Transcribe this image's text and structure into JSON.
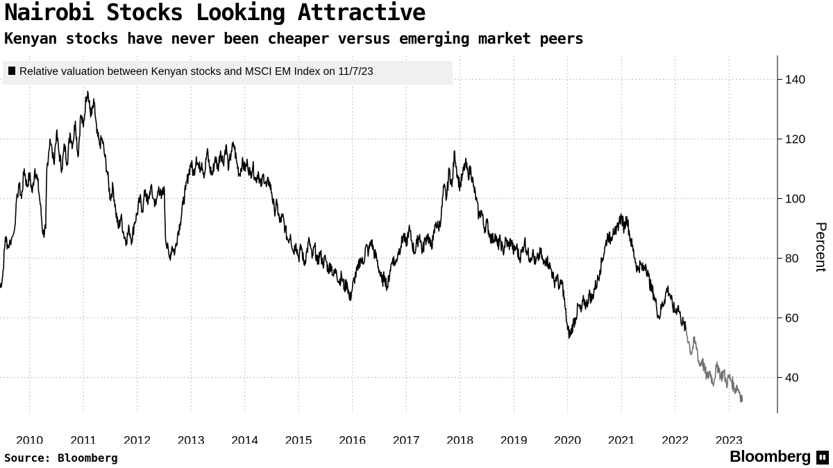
{
  "header": {
    "title": "Nairobi Stocks Looking Attractive",
    "subtitle": "Kenyan stocks have never been cheaper versus emerging market peers"
  },
  "footer": {
    "source": "Source: Bloomberg",
    "brand": "Bloomberg"
  },
  "colors": {
    "series": "#000000",
    "series_recent": "#707070",
    "grid": "#bdbdbd",
    "legend_bg": "#f0f0f0"
  },
  "chart_data": {
    "type": "line",
    "title": "Nairobi Stocks Looking Attractive",
    "subtitle": "Kenyan stocks have never been cheaper versus emerging market peers",
    "xlabel": "",
    "ylabel": "Percent",
    "ylim": [
      28,
      148
    ],
    "xlim": [
      2009.45,
      2023.9
    ],
    "yticks": [
      40,
      60,
      80,
      100,
      120,
      140
    ],
    "xticks": [
      2010,
      2011,
      2012,
      2013,
      2014,
      2015,
      2016,
      2017,
      2018,
      2019,
      2020,
      2021,
      2022,
      2023
    ],
    "grid": true,
    "legend_position": "top-left",
    "y_axis_side": "right",
    "series": [
      {
        "name": "Relative valuation between Kenyan stocks and MSCI EM Index on 11/7/23",
        "points": [
          [
            2009.45,
            70
          ],
          [
            2009.5,
            74
          ],
          [
            2009.55,
            87
          ],
          [
            2009.6,
            84
          ],
          [
            2009.7,
            88
          ],
          [
            2009.8,
            105
          ],
          [
            2009.85,
            100
          ],
          [
            2009.9,
            110
          ],
          [
            2009.95,
            104
          ],
          [
            2010.0,
            108
          ],
          [
            2010.05,
            102
          ],
          [
            2010.1,
            110
          ],
          [
            2010.15,
            106
          ],
          [
            2010.2,
            98
          ],
          [
            2010.25,
            88
          ],
          [
            2010.3,
            90
          ],
          [
            2010.32,
            110
          ],
          [
            2010.38,
            120
          ],
          [
            2010.45,
            112
          ],
          [
            2010.5,
            122
          ],
          [
            2010.55,
            115
          ],
          [
            2010.6,
            110
          ],
          [
            2010.65,
            118
          ],
          [
            2010.7,
            112
          ],
          [
            2010.75,
            122
          ],
          [
            2010.8,
            118
          ],
          [
            2010.85,
            126
          ],
          [
            2010.9,
            114
          ],
          [
            2010.95,
            128
          ],
          [
            2011.0,
            124
          ],
          [
            2011.05,
            134
          ],
          [
            2011.08,
            136
          ],
          [
            2011.12,
            130
          ],
          [
            2011.15,
            128
          ],
          [
            2011.2,
            132
          ],
          [
            2011.25,
            122
          ],
          [
            2011.3,
            118
          ],
          [
            2011.35,
            120
          ],
          [
            2011.4,
            114
          ],
          [
            2011.45,
            108
          ],
          [
            2011.5,
            100
          ],
          [
            2011.55,
            104
          ],
          [
            2011.6,
            96
          ],
          [
            2011.65,
            90
          ],
          [
            2011.7,
            94
          ],
          [
            2011.75,
            88
          ],
          [
            2011.8,
            86
          ],
          [
            2011.85,
            90
          ],
          [
            2011.9,
            86
          ],
          [
            2011.95,
            92
          ],
          [
            2012.0,
            95
          ],
          [
            2012.05,
            100
          ],
          [
            2012.1,
            96
          ],
          [
            2012.15,
            103
          ],
          [
            2012.2,
            98
          ],
          [
            2012.25,
            104
          ],
          [
            2012.3,
            100
          ],
          [
            2012.35,
            98
          ],
          [
            2012.4,
            104
          ],
          [
            2012.45,
            100
          ],
          [
            2012.5,
            104
          ],
          [
            2012.53,
            86
          ],
          [
            2012.6,
            80
          ],
          [
            2012.65,
            84
          ],
          [
            2012.7,
            82
          ],
          [
            2012.75,
            88
          ],
          [
            2012.8,
            92
          ],
          [
            2012.85,
            98
          ],
          [
            2012.9,
            103
          ],
          [
            2012.95,
            108
          ],
          [
            2013.0,
            112
          ],
          [
            2013.05,
            108
          ],
          [
            2013.1,
            114
          ],
          [
            2013.15,
            110
          ],
          [
            2013.2,
            112
          ],
          [
            2013.25,
            108
          ],
          [
            2013.3,
            116
          ],
          [
            2013.35,
            110
          ],
          [
            2013.4,
            108
          ],
          [
            2013.45,
            114
          ],
          [
            2013.5,
            110
          ],
          [
            2013.55,
            116
          ],
          [
            2013.6,
            112
          ],
          [
            2013.65,
            118
          ],
          [
            2013.7,
            110
          ],
          [
            2013.75,
            116
          ],
          [
            2013.8,
            118
          ],
          [
            2013.85,
            112
          ],
          [
            2013.9,
            108
          ],
          [
            2013.95,
            112
          ],
          [
            2014.0,
            110
          ],
          [
            2014.05,
            112
          ],
          [
            2014.1,
            108
          ],
          [
            2014.15,
            111
          ],
          [
            2014.2,
            106
          ],
          [
            2014.25,
            109
          ],
          [
            2014.3,
            104
          ],
          [
            2014.35,
            108
          ],
          [
            2014.4,
            104
          ],
          [
            2014.45,
            106
          ],
          [
            2014.5,
            102
          ],
          [
            2014.55,
            96
          ],
          [
            2014.6,
            98
          ],
          [
            2014.65,
            92
          ],
          [
            2014.7,
            94
          ],
          [
            2014.75,
            90
          ],
          [
            2014.8,
            86
          ],
          [
            2014.85,
            88
          ],
          [
            2014.9,
            82
          ],
          [
            2014.95,
            85
          ],
          [
            2015.0,
            80
          ],
          [
            2015.05,
            84
          ],
          [
            2015.1,
            78
          ],
          [
            2015.15,
            82
          ],
          [
            2015.2,
            86
          ],
          [
            2015.25,
            80
          ],
          [
            2015.3,
            84
          ],
          [
            2015.35,
            78
          ],
          [
            2015.4,
            82
          ],
          [
            2015.45,
            78
          ],
          [
            2015.5,
            80
          ],
          [
            2015.55,
            76
          ],
          [
            2015.6,
            78
          ],
          [
            2015.65,
            74
          ],
          [
            2015.7,
            76
          ],
          [
            2015.75,
            72
          ],
          [
            2015.8,
            74
          ],
          [
            2015.85,
            70
          ],
          [
            2015.9,
            72
          ],
          [
            2015.95,
            66
          ],
          [
            2016.0,
            70
          ],
          [
            2016.05,
            74
          ],
          [
            2016.1,
            76
          ],
          [
            2016.15,
            80
          ],
          [
            2016.2,
            78
          ],
          [
            2016.25,
            84
          ],
          [
            2016.3,
            82
          ],
          [
            2016.35,
            86
          ],
          [
            2016.4,
            82
          ],
          [
            2016.45,
            80
          ],
          [
            2016.5,
            76
          ],
          [
            2016.55,
            72
          ],
          [
            2016.6,
            74
          ],
          [
            2016.65,
            70
          ],
          [
            2016.7,
            76
          ],
          [
            2016.75,
            80
          ],
          [
            2016.8,
            78
          ],
          [
            2016.85,
            82
          ],
          [
            2016.9,
            84
          ],
          [
            2016.95,
            88
          ],
          [
            2017.0,
            84
          ],
          [
            2017.05,
            90
          ],
          [
            2017.1,
            86
          ],
          [
            2017.15,
            82
          ],
          [
            2017.2,
            85
          ],
          [
            2017.25,
            88
          ],
          [
            2017.3,
            82
          ],
          [
            2017.35,
            86
          ],
          [
            2017.4,
            88
          ],
          [
            2017.45,
            84
          ],
          [
            2017.5,
            86
          ],
          [
            2017.55,
            92
          ],
          [
            2017.6,
            90
          ],
          [
            2017.65,
            94
          ],
          [
            2017.7,
            104
          ],
          [
            2017.75,
            100
          ],
          [
            2017.8,
            110
          ],
          [
            2017.85,
            104
          ],
          [
            2017.9,
            116
          ],
          [
            2017.95,
            108
          ],
          [
            2018.0,
            104
          ],
          [
            2018.05,
            108
          ],
          [
            2018.1,
            112
          ],
          [
            2018.15,
            108
          ],
          [
            2018.2,
            110
          ],
          [
            2018.25,
            104
          ],
          [
            2018.3,
            100
          ],
          [
            2018.35,
            94
          ],
          [
            2018.4,
            96
          ],
          [
            2018.45,
            90
          ],
          [
            2018.5,
            92
          ],
          [
            2018.55,
            88
          ],
          [
            2018.6,
            86
          ],
          [
            2018.65,
            88
          ],
          [
            2018.7,
            84
          ],
          [
            2018.75,
            86
          ],
          [
            2018.8,
            82
          ],
          [
            2018.85,
            86
          ],
          [
            2018.9,
            84
          ],
          [
            2018.95,
            86
          ],
          [
            2019.0,
            82
          ],
          [
            2019.05,
            84
          ],
          [
            2019.1,
            80
          ],
          [
            2019.15,
            82
          ],
          [
            2019.2,
            86
          ],
          [
            2019.25,
            82
          ],
          [
            2019.3,
            80
          ],
          [
            2019.35,
            82
          ],
          [
            2019.4,
            78
          ],
          [
            2019.45,
            80
          ],
          [
            2019.5,
            82
          ],
          [
            2019.55,
            78
          ],
          [
            2019.6,
            80
          ],
          [
            2019.65,
            78
          ],
          [
            2019.7,
            76
          ],
          [
            2019.75,
            72
          ],
          [
            2019.8,
            74
          ],
          [
            2019.85,
            70
          ],
          [
            2019.9,
            72
          ],
          [
            2019.95,
            64
          ],
          [
            2020.0,
            56
          ],
          [
            2020.05,
            54
          ],
          [
            2020.1,
            58
          ],
          [
            2020.15,
            60
          ],
          [
            2020.2,
            64
          ],
          [
            2020.25,
            62
          ],
          [
            2020.3,
            66
          ],
          [
            2020.35,
            64
          ],
          [
            2020.4,
            68
          ],
          [
            2020.45,
            66
          ],
          [
            2020.5,
            70
          ],
          [
            2020.55,
            72
          ],
          [
            2020.6,
            76
          ],
          [
            2020.65,
            80
          ],
          [
            2020.7,
            84
          ],
          [
            2020.75,
            88
          ],
          [
            2020.8,
            86
          ],
          [
            2020.85,
            90
          ],
          [
            2020.9,
            88
          ],
          [
            2020.95,
            92
          ],
          [
            2021.0,
            94
          ],
          [
            2021.05,
            90
          ],
          [
            2021.1,
            94
          ],
          [
            2021.15,
            88
          ],
          [
            2021.2,
            84
          ],
          [
            2021.25,
            80
          ],
          [
            2021.3,
            76
          ],
          [
            2021.35,
            78
          ],
          [
            2021.4,
            76
          ],
          [
            2021.45,
            78
          ],
          [
            2021.5,
            74
          ],
          [
            2021.55,
            70
          ],
          [
            2021.6,
            68
          ],
          [
            2021.65,
            64
          ],
          [
            2021.7,
            60
          ],
          [
            2021.75,
            64
          ],
          [
            2021.8,
            66
          ],
          [
            2021.85,
            70
          ],
          [
            2021.9,
            68
          ],
          [
            2021.95,
            64
          ],
          [
            2022.0,
            62
          ],
          [
            2022.05,
            64
          ],
          [
            2022.1,
            60
          ],
          [
            2022.15,
            58
          ],
          [
            2022.2,
            56
          ]
        ]
      },
      {
        "name": "recent",
        "points": [
          [
            2022.2,
            56
          ],
          [
            2022.25,
            52
          ],
          [
            2022.3,
            48
          ],
          [
            2022.35,
            52
          ],
          [
            2022.4,
            50
          ],
          [
            2022.45,
            44
          ],
          [
            2022.5,
            46
          ],
          [
            2022.55,
            42
          ],
          [
            2022.6,
            40
          ],
          [
            2022.65,
            42
          ],
          [
            2022.7,
            38
          ],
          [
            2022.75,
            42
          ],
          [
            2022.8,
            44
          ],
          [
            2022.85,
            40
          ],
          [
            2022.9,
            42
          ],
          [
            2022.95,
            38
          ],
          [
            2023.0,
            40
          ],
          [
            2023.05,
            39
          ],
          [
            2023.1,
            36
          ],
          [
            2023.15,
            37
          ],
          [
            2023.2,
            35
          ],
          [
            2023.25,
            32
          ]
        ]
      }
    ]
  }
}
